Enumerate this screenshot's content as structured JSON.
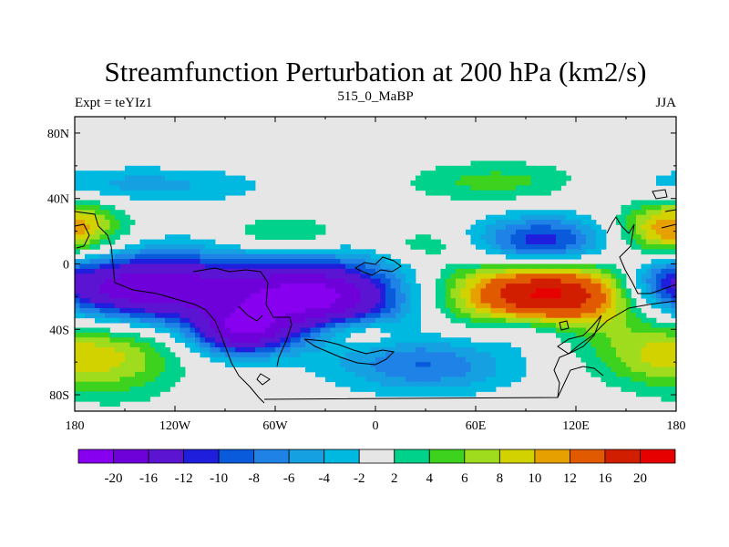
{
  "chart_data": {
    "type": "heatmap",
    "title": "Streamfunction Perturbation at 200 hPa (km2/s)",
    "left_label": "Expt = teYIz1",
    "center_label": "515_0_MaBP",
    "right_label": "JJA",
    "x_ticks": [
      "180",
      "120W",
      "60W",
      "0",
      "60E",
      "120E",
      "180"
    ],
    "x_tick_values": [
      -180,
      -120,
      -60,
      0,
      60,
      120,
      180
    ],
    "y_ticks": [
      "80N",
      "40N",
      "0",
      "40S",
      "80S"
    ],
    "y_tick_values": [
      80,
      40,
      0,
      -40,
      -80
    ],
    "xlim": [
      -180,
      180
    ],
    "ylim": [
      -90,
      90
    ],
    "levels": [
      -20,
      -16,
      -12,
      -10,
      -8,
      -6,
      -4,
      -2,
      2,
      4,
      6,
      8,
      10,
      12,
      16,
      20
    ],
    "level_labels": [
      "-20",
      "-16",
      "-12",
      "-10",
      "-8",
      "-6",
      "-4",
      "-2",
      "2",
      "4",
      "6",
      "8",
      "10",
      "12",
      "16",
      "20"
    ],
    "colors": [
      "#8700f0",
      "#6e00d9",
      "#5a14d2",
      "#1e1edc",
      "#0a5adc",
      "#1e82e6",
      "#14a0e1",
      "#00b9e1",
      "#e6e6e6",
      "#00d28c",
      "#3cd21e",
      "#a0dc1e",
      "#d2d200",
      "#e6a000",
      "#e15a00",
      "#d21e00",
      "#e60000"
    ],
    "features": [
      {
        "kind": "min",
        "lon": -140,
        "lat": -15,
        "value": -20,
        "sx": 45,
        "sy": 16
      },
      {
        "kind": "min",
        "lon": -35,
        "lat": -20,
        "value": -21,
        "sx": 38,
        "sy": 16
      },
      {
        "kind": "min",
        "lon": -80,
        "lat": -42,
        "value": -15,
        "sx": 20,
        "sy": 10
      },
      {
        "kind": "min",
        "lon": 100,
        "lat": 12,
        "value": -13,
        "sx": 28,
        "sy": 12
      },
      {
        "kind": "min",
        "lon": 30,
        "lat": -62,
        "value": -8,
        "sx": 38,
        "sy": 12
      },
      {
        "kind": "min",
        "lon": 90,
        "lat": -40,
        "value": -5,
        "sx": 20,
        "sy": 8
      },
      {
        "kind": "min",
        "lon": -145,
        "lat": 48,
        "value": -5,
        "sx": 55,
        "sy": 8
      },
      {
        "kind": "min",
        "lon": 170,
        "lat": -10,
        "value": -6,
        "sx": 18,
        "sy": 12
      },
      {
        "kind": "max",
        "lon": 105,
        "lat": -18,
        "value": 22,
        "sx": 42,
        "sy": 15
      },
      {
        "kind": "max",
        "lon": 75,
        "lat": 50,
        "value": 5,
        "sx": 40,
        "sy": 9
      },
      {
        "kind": "max",
        "lon": -180,
        "lat": 20,
        "value": 7,
        "sx": 25,
        "sy": 14
      },
      {
        "kind": "max",
        "lon": 175,
        "lat": 20,
        "value": 6,
        "sx": 18,
        "sy": 13
      },
      {
        "kind": "max",
        "lon": -55,
        "lat": 18,
        "value": 5,
        "sx": 25,
        "sy": 8
      },
      {
        "kind": "max",
        "lon": 30,
        "lat": 12,
        "value": 3.5,
        "sx": 18,
        "sy": 6
      },
      {
        "kind": "max",
        "lon": -155,
        "lat": -55,
        "value": 8,
        "sx": 28,
        "sy": 18
      },
      {
        "kind": "max",
        "lon": -10,
        "lat": -42,
        "value": 6,
        "sx": 18,
        "sy": 7
      },
      {
        "kind": "max",
        "lon": 160,
        "lat": -55,
        "value": 6,
        "sx": 25,
        "sy": 14
      }
    ]
  }
}
